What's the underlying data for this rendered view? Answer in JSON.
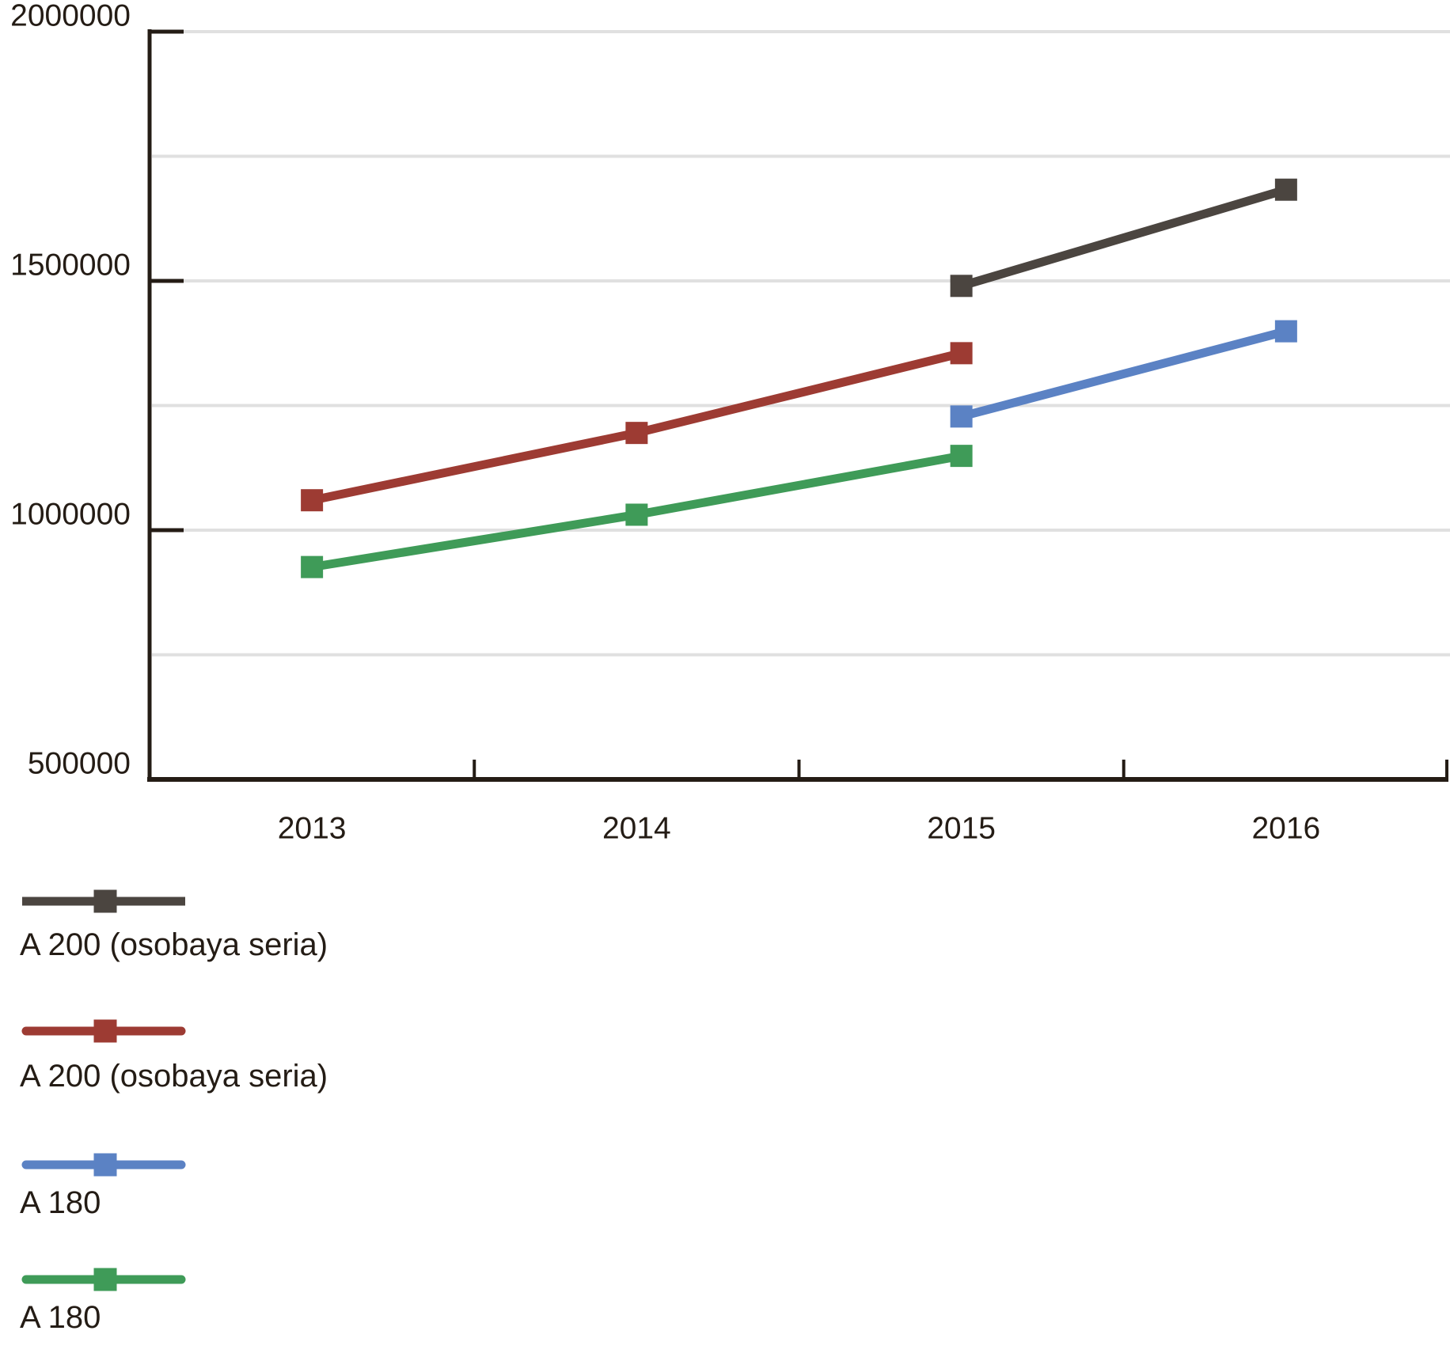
{
  "chart": {
    "background": "#ffffff",
    "axis_color": "#241c15",
    "text_color": "#241c15",
    "grid_color": "#e0e0e0"
  },
  "chart_data": {
    "type": "line",
    "title": "",
    "categories": [
      "2013",
      "2014",
      "2015",
      "2016"
    ],
    "ylim": [
      500000,
      2000000
    ],
    "y_tick_values": [
      500000,
      1000000,
      1500000,
      2000000
    ],
    "y_tick_labels": [
      "500000",
      "1000000",
      "1500000",
      "2000000"
    ],
    "y_gridline_step": 250000,
    "grid": true,
    "legend_position": "bottom-left",
    "marker": "square",
    "series": [
      {
        "name": "A 200 (osobaya seria)",
        "color": "#4b4540",
        "line_cap": "butt",
        "values": [
          null,
          null,
          1490000,
          1683000
        ]
      },
      {
        "name": "A 200 (osobaya seria)",
        "color": "#9d3b33",
        "line_cap": "round",
        "values": [
          1060000,
          1195000,
          1355000,
          null
        ]
      },
      {
        "name": "A 180",
        "color": "#5b82c4",
        "line_cap": "round",
        "values": [
          null,
          null,
          1228000,
          1399000
        ]
      },
      {
        "name": "A 180",
        "color": "#3f9b58",
        "line_cap": "round",
        "values": [
          926000,
          1031000,
          1149000,
          null
        ]
      }
    ]
  }
}
